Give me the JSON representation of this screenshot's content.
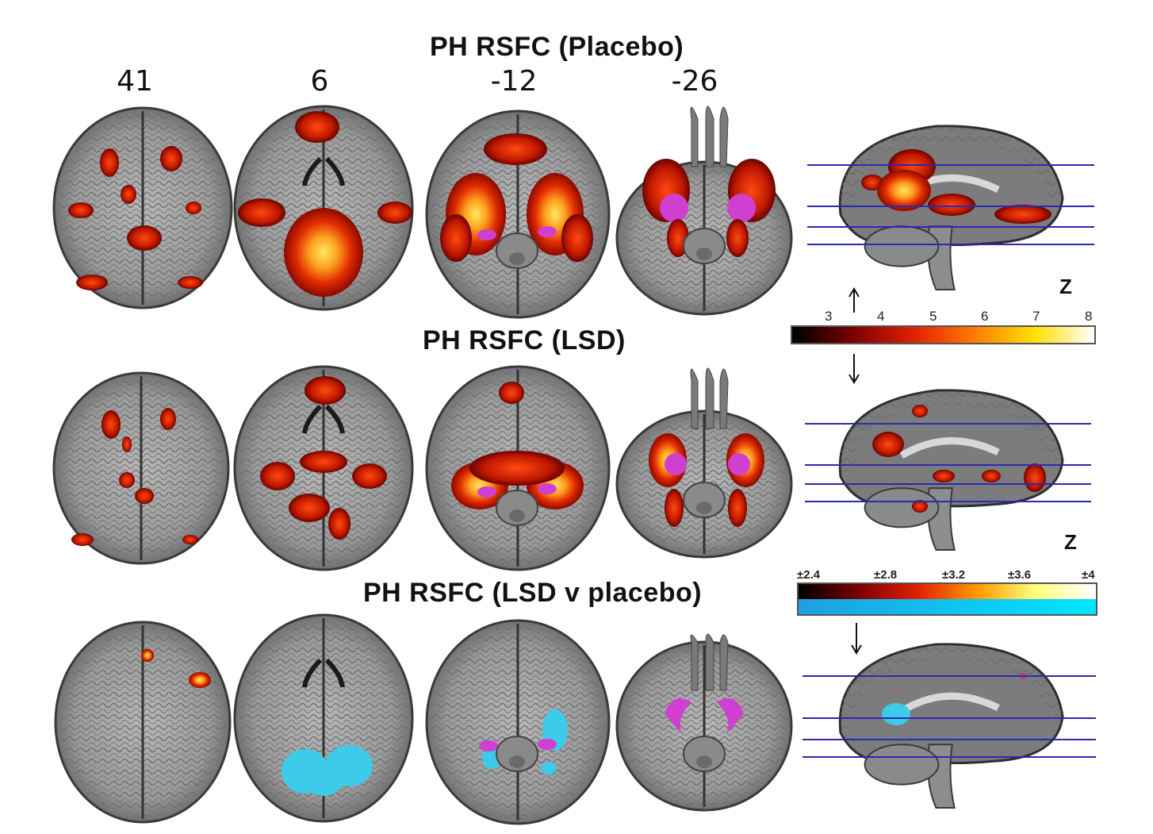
{
  "titles": {
    "row1": "PH RSFC (Placebo)",
    "row2": "PH RSFC (LSD)",
    "row3": "PH RSFC (LSD v placebo)"
  },
  "slices": [
    "41",
    "6",
    "-12",
    "-26"
  ],
  "z_label": "Z",
  "colorbar_pos": {
    "ticks": [
      "3",
      "4",
      "5",
      "6",
      "7",
      "8"
    ],
    "colors": [
      "#000000",
      "#7a0000",
      "#e02000",
      "#ff7a00",
      "#ffe000",
      "#ffffff"
    ]
  },
  "colorbar_diff": {
    "ticks": [
      "±2.4",
      "±2.8",
      "±3.2",
      "±3.6",
      "±4"
    ],
    "warm_colors": [
      "#000000",
      "#7a0000",
      "#e02000",
      "#ff9a00",
      "#ffff80",
      "#ffffff"
    ],
    "cool_colors": [
      "#1f9fe0",
      "#00e5ff"
    ]
  },
  "colors": {
    "activation_hot": "#ff3a00",
    "activation_core": "#ffd23a",
    "seed_roi": "#d040d0",
    "negative": "#3ccbe8",
    "slice_lines": "#2a2ab0"
  }
}
